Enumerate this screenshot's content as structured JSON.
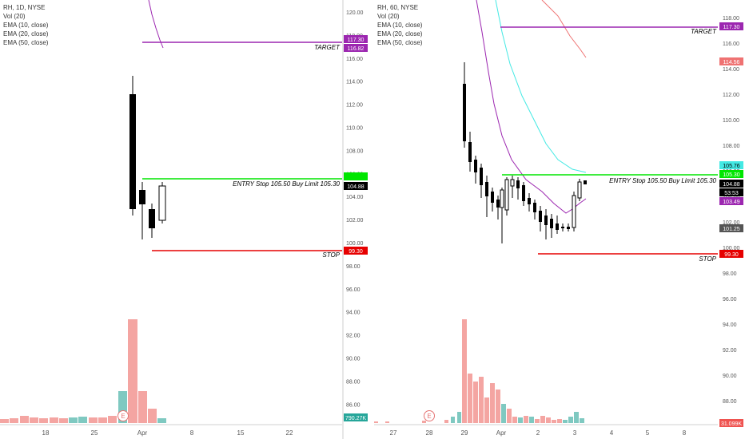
{
  "left": {
    "legend": [
      "RH, 1D, NYSE",
      "Vol (20)",
      "EMA (10, close)",
      "EMA (20, close)",
      "EMA (50, close)"
    ],
    "price_ticks": [
      "120.00",
      "118.00",
      "116.00",
      "114.00",
      "112.00",
      "110.00",
      "108.00",
      "106.00",
      "104.00",
      "102.00",
      "100.00",
      "98.00",
      "96.00",
      "94.00",
      "92.00",
      "90.00",
      "88.00",
      "86.00"
    ],
    "price_tick_values": [
      120,
      118,
      116,
      114,
      112,
      110,
      108,
      106,
      104,
      102,
      100,
      98,
      96,
      94,
      92,
      90,
      88,
      86
    ],
    "time_ticks": [
      "18",
      "25",
      "Apr",
      "8",
      "15",
      "22"
    ],
    "badges": {
      "target_a": "117.30",
      "target_b": "116.82",
      "entry": "104.88",
      "stop": "99.30",
      "volume": "790.27K"
    },
    "labels": {
      "target": "TARGET",
      "entry": "ENTRY Stop 105.50 Buy Limit 105.30",
      "stop": "STOP"
    },
    "event_marker": "E"
  },
  "right": {
    "legend": [
      "RH, 60, NYSE",
      "Vol (20)",
      "EMA (10, close)",
      "EMA (20, close)",
      "EMA (50, close)"
    ],
    "price_ticks": [
      "118.00",
      "116.00",
      "114.00",
      "112.00",
      "110.00",
      "108.00",
      "106.00",
      "104.00",
      "102.00",
      "100.00",
      "98.00",
      "96.00",
      "94.00",
      "92.00",
      "90.00",
      "88.00"
    ],
    "price_tick_values": [
      118,
      116,
      114,
      112,
      110,
      108,
      106,
      104,
      102,
      100,
      98,
      96,
      94,
      92,
      90,
      88
    ],
    "time_ticks": [
      "27",
      "28",
      "29",
      "Apr",
      "2",
      "3",
      "4",
      "5",
      "8"
    ],
    "badges": {
      "target": "117.30",
      "ema50": "114.56",
      "ema20": "105.76",
      "entry": "105.30",
      "price": "104.88",
      "timer": "53:53",
      "ema10": "103.49",
      "low": "101.25",
      "stop": "99.30",
      "volume": "31.099K"
    },
    "labels": {
      "target": "TARGET",
      "entry": "ENTRY Stop 105.50 Buy Limit 105.30",
      "stop": "STOP"
    },
    "event_marker": "E"
  },
  "colors": {
    "target": "#9c27b0",
    "entry": "#00e600",
    "stop": "#e60000",
    "vol_up": "#7fc9c1",
    "vol_down": "#f4a5a2",
    "ema10": "#9c27b0",
    "ema20": "#43e9e4",
    "ema50": "#ef7272"
  }
}
